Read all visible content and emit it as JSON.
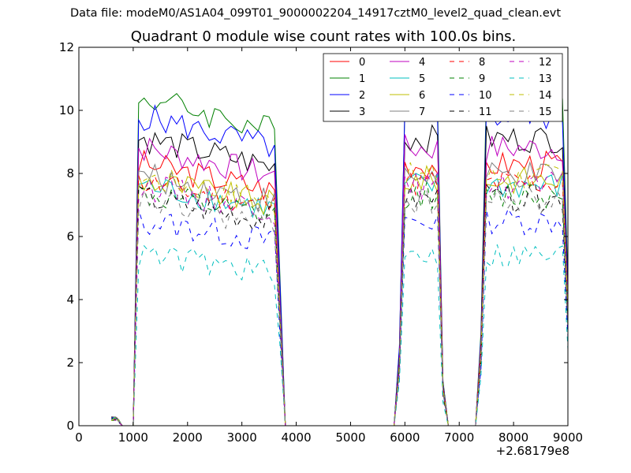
{
  "suptitle": "Data file: modeM0/AS1A04_099T01_9000002204_14917cztM0_level2_quad_clean.evt",
  "chart_data": {
    "type": "line",
    "title": "Quadrant 0 module wise count rates with 100.0s bins.",
    "xlabel": "",
    "ylabel": "",
    "x_offset_label": "+2.68179e8",
    "xlim": [
      0,
      9000
    ],
    "ylim": [
      0,
      12
    ],
    "xticks": [
      0,
      1000,
      2000,
      3000,
      4000,
      5000,
      6000,
      7000,
      8000,
      9000
    ],
    "xtick_labels": [
      "0",
      "1000",
      "2000",
      "3000",
      "4000",
      "5000",
      "6000",
      "7000",
      "8000",
      "9000"
    ],
    "yticks": [
      0,
      2,
      4,
      6,
      8,
      10,
      12
    ],
    "ytick_labels": [
      "0",
      "2",
      "4",
      "6",
      "8",
      "10",
      "12"
    ],
    "grid": false,
    "legend_position": "top-right",
    "legend_columns": 4,
    "x_start": 600,
    "x_step": 100,
    "segments": [
      {
        "start": 600,
        "end": 700,
        "level": 0.1
      },
      {
        "start": 800,
        "end": 1000,
        "level": 0.0
      },
      {
        "start": 1100,
        "end": 1100,
        "level": 1.0
      },
      {
        "start": 1200,
        "end": 3600,
        "level": 1.0
      },
      {
        "start": 3700,
        "end": 3700,
        "level": 0.45
      },
      {
        "start": 3800,
        "end": 5800,
        "level": 0.0
      },
      {
        "start": 5900,
        "end": 5900,
        "level": 0.25
      },
      {
        "start": 6000,
        "end": 6600,
        "level": 1.0
      },
      {
        "start": 6700,
        "end": 6700,
        "level": 0.15
      },
      {
        "start": 6800,
        "end": 7300,
        "level": 0.0
      },
      {
        "start": 7400,
        "end": 7400,
        "level": 0.3
      },
      {
        "start": 7500,
        "end": 8900,
        "level": 1.0
      },
      {
        "start": 9000,
        "end": 9000,
        "level": 0.45
      }
    ],
    "series": [
      {
        "name": "0",
        "color": "#ff0000",
        "dash": "solid",
        "mean": 8.3
      },
      {
        "name": "1",
        "color": "#008000",
        "dash": "solid",
        "mean": 10.4
      },
      {
        "name": "2",
        "color": "#0000ff",
        "dash": "solid",
        "mean": 9.8
      },
      {
        "name": "3",
        "color": "#000000",
        "dash": "solid",
        "mean": 9.1
      },
      {
        "name": "4",
        "color": "#bf00bf",
        "dash": "solid",
        "mean": 8.8
      },
      {
        "name": "5",
        "color": "#00bfbf",
        "dash": "solid",
        "mean": 7.6
      },
      {
        "name": "6",
        "color": "#bfbf00",
        "dash": "solid",
        "mean": 7.8
      },
      {
        "name": "7",
        "color": "#808080",
        "dash": "solid",
        "mean": 7.9
      },
      {
        "name": "8",
        "color": "#ff0000",
        "dash": "dashed",
        "mean": 7.7
      },
      {
        "name": "9",
        "color": "#008000",
        "dash": "dashed",
        "mean": 7.3
      },
      {
        "name": "10",
        "color": "#0000ff",
        "dash": "dashed",
        "mean": 6.5
      },
      {
        "name": "11",
        "color": "#000000",
        "dash": "dashed",
        "mean": 7.2
      },
      {
        "name": "12",
        "color": "#bf00bf",
        "dash": "dashed",
        "mean": 7.6
      },
      {
        "name": "13",
        "color": "#00bfbf",
        "dash": "dashed",
        "mean": 5.4
      },
      {
        "name": "14",
        "color": "#bfbf00",
        "dash": "dashed",
        "mean": 7.9
      },
      {
        "name": "15",
        "color": "#808080",
        "dash": "dashed",
        "mean": 7.1
      }
    ]
  }
}
